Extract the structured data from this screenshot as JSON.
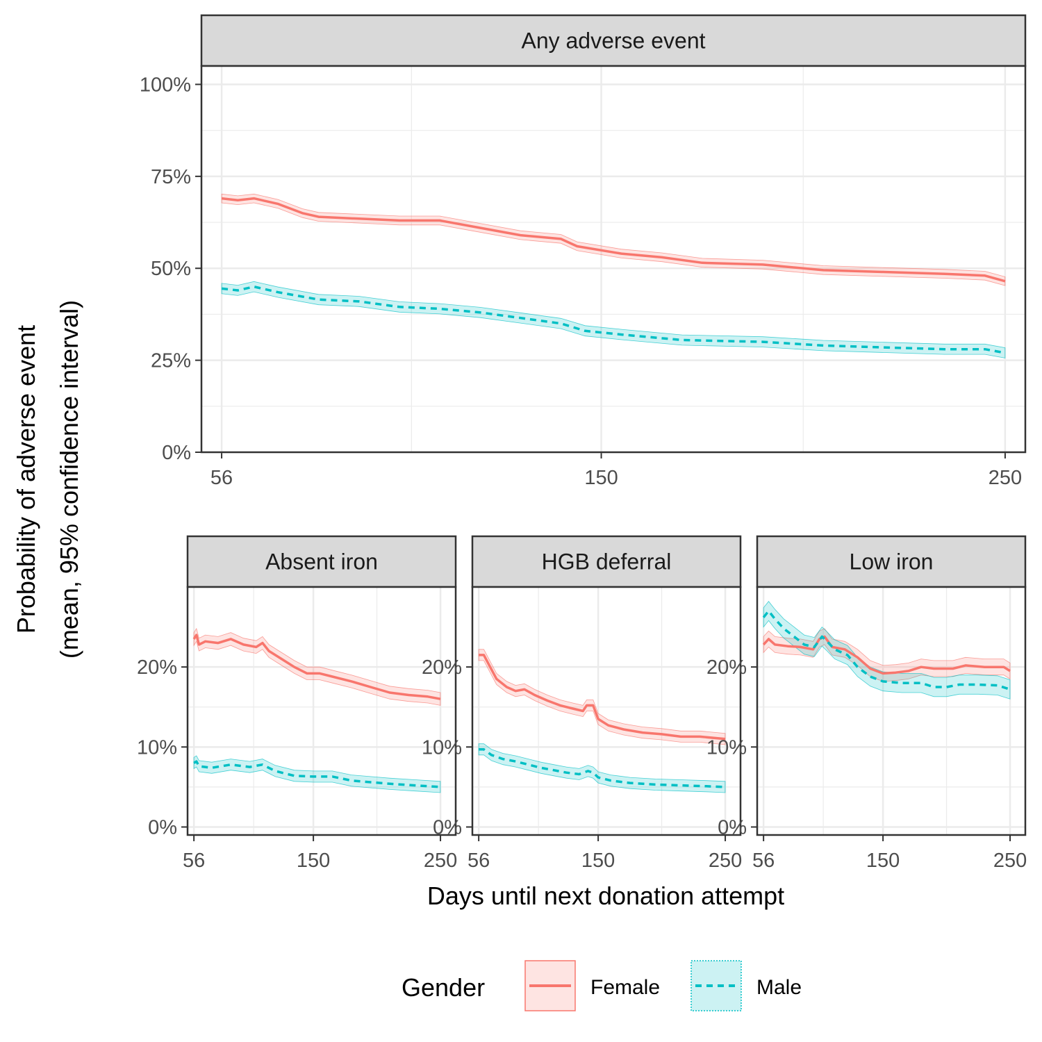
{
  "figure": {
    "ylabel_line1": "Probability of adverse event",
    "ylabel_line2": "(mean, 95% confidence interval)",
    "xlabel": "Days until next donation attempt"
  },
  "legend": {
    "title": "Gender",
    "items": [
      {
        "label": "Female",
        "color": "#F8766D",
        "dash": "solid"
      },
      {
        "label": "Male",
        "color": "#00BFC4",
        "dash": "dashed"
      }
    ]
  },
  "chart_data": [
    {
      "type": "line",
      "facet": "Any adverse event",
      "x_ticks": [
        56,
        150,
        250
      ],
      "y_ticks": [
        0,
        0.25,
        0.5,
        0.75,
        1.0
      ],
      "y_tick_labels": [
        "0%",
        "25%",
        "50%",
        "75%",
        "100%"
      ],
      "xlim": [
        51,
        255
      ],
      "ylim": [
        -0.0,
        1.05
      ],
      "ci_halfwidth": {
        "Female": 0.012,
        "Male": 0.014
      },
      "series": [
        {
          "name": "Female",
          "points": [
            [
              56,
              0.69
            ],
            [
              60,
              0.685
            ],
            [
              64,
              0.69
            ],
            [
              70,
              0.675
            ],
            [
              76,
              0.65
            ],
            [
              80,
              0.64
            ],
            [
              90,
              0.635
            ],
            [
              100,
              0.63
            ],
            [
              110,
              0.63
            ],
            [
              120,
              0.61
            ],
            [
              130,
              0.59
            ],
            [
              140,
              0.58
            ],
            [
              144,
              0.56
            ],
            [
              155,
              0.54
            ],
            [
              165,
              0.53
            ],
            [
              175,
              0.515
            ],
            [
              190,
              0.51
            ],
            [
              205,
              0.495
            ],
            [
              220,
              0.49
            ],
            [
              235,
              0.485
            ],
            [
              245,
              0.48
            ],
            [
              250,
              0.465
            ]
          ]
        },
        {
          "name": "Male",
          "points": [
            [
              56,
              0.445
            ],
            [
              60,
              0.44
            ],
            [
              64,
              0.45
            ],
            [
              70,
              0.435
            ],
            [
              80,
              0.415
            ],
            [
              90,
              0.41
            ],
            [
              100,
              0.395
            ],
            [
              110,
              0.39
            ],
            [
              120,
              0.38
            ],
            [
              130,
              0.365
            ],
            [
              140,
              0.35
            ],
            [
              146,
              0.33
            ],
            [
              155,
              0.32
            ],
            [
              170,
              0.305
            ],
            [
              190,
              0.3
            ],
            [
              205,
              0.29
            ],
            [
              220,
              0.285
            ],
            [
              235,
              0.28
            ],
            [
              245,
              0.28
            ],
            [
              250,
              0.27
            ]
          ]
        }
      ]
    },
    {
      "type": "line",
      "facet": "Absent iron",
      "x_ticks": [
        56,
        150,
        250
      ],
      "y_ticks": [
        0,
        0.1,
        0.2
      ],
      "y_tick_labels": [
        "0%",
        "10%",
        "20%"
      ],
      "xlim": [
        51,
        262
      ],
      "ylim": [
        -0.01,
        0.3
      ],
      "ci_halfwidth": {
        "Female": 0.008,
        "Male": 0.007
      },
      "series": [
        {
          "name": "Female",
          "points": [
            [
              56,
              0.235
            ],
            [
              58,
              0.24
            ],
            [
              60,
              0.228
            ],
            [
              65,
              0.232
            ],
            [
              75,
              0.23
            ],
            [
              85,
              0.235
            ],
            [
              95,
              0.228
            ],
            [
              105,
              0.225
            ],
            [
              110,
              0.23
            ],
            [
              115,
              0.22
            ],
            [
              125,
              0.21
            ],
            [
              135,
              0.2
            ],
            [
              145,
              0.192
            ],
            [
              155,
              0.192
            ],
            [
              165,
              0.188
            ],
            [
              180,
              0.182
            ],
            [
              195,
              0.175
            ],
            [
              210,
              0.168
            ],
            [
              225,
              0.165
            ],
            [
              240,
              0.163
            ],
            [
              250,
              0.16
            ]
          ]
        },
        {
          "name": "Male",
          "points": [
            [
              56,
              0.08
            ],
            [
              58,
              0.082
            ],
            [
              60,
              0.076
            ],
            [
              70,
              0.074
            ],
            [
              85,
              0.078
            ],
            [
              100,
              0.075
            ],
            [
              110,
              0.078
            ],
            [
              120,
              0.07
            ],
            [
              135,
              0.064
            ],
            [
              150,
              0.063
            ],
            [
              165,
              0.063
            ],
            [
              180,
              0.058
            ],
            [
              195,
              0.056
            ],
            [
              210,
              0.054
            ],
            [
              230,
              0.052
            ],
            [
              250,
              0.05
            ]
          ]
        }
      ]
    },
    {
      "type": "line",
      "facet": "HGB deferral",
      "x_ticks": [
        56,
        150,
        250
      ],
      "y_ticks": [
        0,
        0.1,
        0.2
      ],
      "y_tick_labels": [
        "0%",
        "10%",
        "20%"
      ],
      "xlim": [
        51,
        262
      ],
      "ylim": [
        -0.01,
        0.3
      ],
      "ci_halfwidth": {
        "Female": 0.007,
        "Male": 0.007
      },
      "series": [
        {
          "name": "Female",
          "points": [
            [
              56,
              0.215
            ],
            [
              60,
              0.215
            ],
            [
              65,
              0.2
            ],
            [
              70,
              0.185
            ],
            [
              78,
              0.175
            ],
            [
              85,
              0.17
            ],
            [
              92,
              0.172
            ],
            [
              100,
              0.165
            ],
            [
              110,
              0.158
            ],
            [
              120,
              0.152
            ],
            [
              130,
              0.148
            ],
            [
              138,
              0.145
            ],
            [
              141,
              0.152
            ],
            [
              146,
              0.152
            ],
            [
              150,
              0.135
            ],
            [
              158,
              0.127
            ],
            [
              170,
              0.122
            ],
            [
              185,
              0.118
            ],
            [
              200,
              0.116
            ],
            [
              215,
              0.113
            ],
            [
              230,
              0.113
            ],
            [
              250,
              0.11
            ]
          ]
        },
        {
          "name": "Male",
          "points": [
            [
              56,
              0.097
            ],
            [
              60,
              0.097
            ],
            [
              66,
              0.09
            ],
            [
              75,
              0.085
            ],
            [
              85,
              0.082
            ],
            [
              95,
              0.078
            ],
            [
              105,
              0.074
            ],
            [
              115,
              0.071
            ],
            [
              125,
              0.068
            ],
            [
              135,
              0.066
            ],
            [
              142,
              0.07
            ],
            [
              146,
              0.068
            ],
            [
              150,
              0.062
            ],
            [
              160,
              0.058
            ],
            [
              175,
              0.055
            ],
            [
              195,
              0.053
            ],
            [
              215,
              0.052
            ],
            [
              235,
              0.051
            ],
            [
              250,
              0.05
            ]
          ]
        }
      ]
    },
    {
      "type": "line",
      "facet": "Low iron",
      "x_ticks": [
        56,
        150,
        250
      ],
      "y_ticks": [
        0,
        0.1,
        0.2
      ],
      "y_tick_labels": [
        "0%",
        "10%",
        "20%"
      ],
      "xlim": [
        51,
        262
      ],
      "ylim": [
        -0.01,
        0.3
      ],
      "ci_halfwidth": {
        "Female": 0.01,
        "Male": 0.012
      },
      "series": [
        {
          "name": "Female",
          "points": [
            [
              56,
              0.228
            ],
            [
              60,
              0.235
            ],
            [
              65,
              0.228
            ],
            [
              75,
              0.226
            ],
            [
              85,
              0.225
            ],
            [
              95,
              0.222
            ],
            [
              100,
              0.235
            ],
            [
              104,
              0.238
            ],
            [
              110,
              0.225
            ],
            [
              120,
              0.222
            ],
            [
              130,
              0.212
            ],
            [
              140,
              0.198
            ],
            [
              150,
              0.192
            ],
            [
              160,
              0.193
            ],
            [
              170,
              0.195
            ],
            [
              180,
              0.2
            ],
            [
              190,
              0.198
            ],
            [
              205,
              0.198
            ],
            [
              215,
              0.202
            ],
            [
              230,
              0.2
            ],
            [
              245,
              0.2
            ],
            [
              250,
              0.195
            ]
          ]
        },
        {
          "name": "Male",
          "points": [
            [
              56,
              0.262
            ],
            [
              60,
              0.27
            ],
            [
              65,
              0.26
            ],
            [
              72,
              0.248
            ],
            [
              80,
              0.238
            ],
            [
              88,
              0.228
            ],
            [
              96,
              0.225
            ],
            [
              102,
              0.238
            ],
            [
              106,
              0.232
            ],
            [
              112,
              0.222
            ],
            [
              122,
              0.215
            ],
            [
              130,
              0.2
            ],
            [
              140,
              0.188
            ],
            [
              150,
              0.182
            ],
            [
              165,
              0.18
            ],
            [
              180,
              0.18
            ],
            [
              190,
              0.175
            ],
            [
              200,
              0.175
            ],
            [
              210,
              0.178
            ],
            [
              225,
              0.178
            ],
            [
              240,
              0.177
            ],
            [
              250,
              0.172
            ]
          ]
        }
      ]
    }
  ]
}
